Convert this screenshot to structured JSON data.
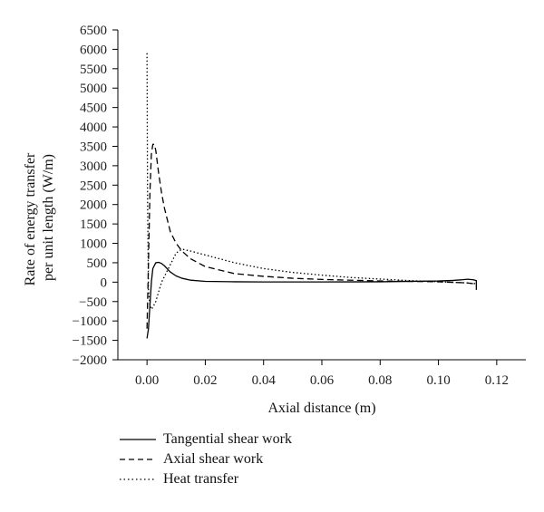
{
  "chart_data": {
    "type": "line",
    "xlabel": "Axial distance (m)",
    "ylabel_lines": [
      "Rate of energy transfer",
      "per unit length (W/m)"
    ],
    "xlim": [
      -0.01,
      0.13
    ],
    "ylim": [
      -2000,
      6500
    ],
    "x_ticks": [
      0.0,
      0.02,
      0.04,
      0.06,
      0.08,
      0.1,
      0.12
    ],
    "x_tick_labels": [
      "0.00",
      "0.02",
      "0.04",
      "0.06",
      "0.08",
      "0.10",
      "0.12"
    ],
    "y_ticks": [
      -2000,
      -1500,
      -1000,
      -500,
      0,
      500,
      1000,
      1500,
      2000,
      2500,
      3000,
      3500,
      4000,
      4500,
      5000,
      5500,
      6000,
      6500
    ],
    "y_tick_labels": [
      "−2000",
      "−1500",
      "−1000",
      "−500",
      "0",
      "500",
      "1000",
      "1500",
      "2000",
      "2500",
      "3000",
      "3500",
      "4000",
      "4500",
      "5000",
      "5500",
      "6000",
      "6500"
    ],
    "grid": false,
    "legend_position": "below",
    "series": [
      {
        "name": "Tangential shear work",
        "style": "solid",
        "x": [
          0.0,
          0.0005,
          0.001,
          0.0015,
          0.002,
          0.003,
          0.004,
          0.005,
          0.006,
          0.007,
          0.008,
          0.01,
          0.012,
          0.015,
          0.02,
          0.03,
          0.04,
          0.06,
          0.08,
          0.1,
          0.105,
          0.108,
          0.11,
          0.112,
          0.113,
          0.113,
          0.113
        ],
        "y": [
          -1450,
          -1200,
          -600,
          0,
          350,
          500,
          510,
          480,
          420,
          340,
          260,
          160,
          100,
          50,
          20,
          10,
          5,
          5,
          10,
          30,
          45,
          60,
          75,
          60,
          40,
          0,
          -200
        ]
      },
      {
        "name": "Axial shear work",
        "style": "dashed",
        "x": [
          0.0,
          0.0005,
          0.001,
          0.0015,
          0.002,
          0.0025,
          0.003,
          0.004,
          0.005,
          0.006,
          0.008,
          0.01,
          0.012,
          0.015,
          0.02,
          0.03,
          0.04,
          0.05,
          0.06,
          0.08,
          0.1,
          0.11,
          0.113
        ],
        "y": [
          -1200,
          500,
          2300,
          3300,
          3550,
          3550,
          3400,
          2800,
          2300,
          1900,
          1300,
          1000,
          800,
          600,
          400,
          220,
          150,
          100,
          70,
          30,
          10,
          -20,
          -50
        ]
      },
      {
        "name": "Heat transfer",
        "style": "dotted",
        "x": [
          0.0,
          0.0002,
          0.0005,
          0.001,
          0.0015,
          0.002,
          0.003,
          0.004,
          0.005,
          0.006,
          0.008,
          0.01,
          0.012,
          0.015,
          0.02,
          0.03,
          0.04,
          0.05,
          0.06,
          0.07,
          0.08,
          0.09,
          0.1,
          0.11,
          0.113
        ],
        "y": [
          5900,
          2000,
          -200,
          -600,
          -700,
          -650,
          -500,
          -250,
          0,
          150,
          450,
          750,
          850,
          800,
          700,
          500,
          350,
          250,
          180,
          120,
          80,
          40,
          10,
          -20,
          -40
        ]
      }
    ]
  }
}
